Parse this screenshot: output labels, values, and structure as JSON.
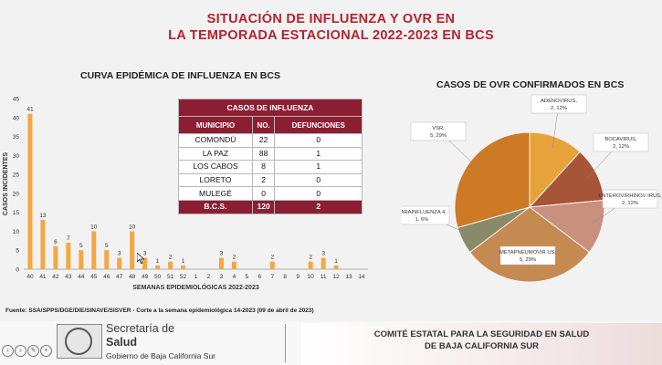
{
  "title_line1": "SITUACIÓN DE INFLUENZA Y OVR EN",
  "title_line2": "LA TEMPORADA ESTACIONAL 2022-2023 EN BCS",
  "chart_data": [
    {
      "type": "bar",
      "title": "CURVA EPIDÉMICA DE INFLUENZA EN BCS",
      "xlabel": "SEMANAS EPIDEMIOLÓGICAS 2022-2023",
      "ylabel": "CASOS INCIDENTES",
      "ylim": [
        0,
        45
      ],
      "yticks": [
        0,
        5,
        10,
        15,
        20,
        25,
        30,
        35,
        40,
        45
      ],
      "categories": [
        "40",
        "41",
        "42",
        "43",
        "44",
        "45",
        "46",
        "47",
        "48",
        "49",
        "50",
        "51",
        "52",
        "1",
        "2",
        "3",
        "4",
        "5",
        "6",
        "7",
        "8",
        "9",
        "10",
        "11",
        "12",
        "13",
        "14"
      ],
      "values": [
        41,
        13,
        6,
        7,
        5,
        10,
        5,
        3,
        10,
        3,
        1,
        2,
        1,
        0,
        0,
        3,
        2,
        0,
        0,
        2,
        0,
        0,
        2,
        3,
        1,
        0,
        0
      ],
      "data_labels": [
        "41",
        "13",
        "6",
        "7",
        "5",
        "10",
        "5",
        "3",
        "10",
        "3",
        "1",
        "2",
        "1",
        "",
        "",
        "3",
        "2",
        "",
        "",
        "2",
        "",
        "",
        "2",
        "3",
        "1",
        "",
        ""
      ],
      "color": "#f4a742",
      "grid": false
    },
    {
      "type": "pie",
      "title": "CASOS DE OVR CONFIRMADOS EN BCS",
      "slices": [
        {
          "label": "ADENOVIRUS, 2, 12%",
          "value": 2,
          "percent": 12,
          "color": "#e8a23a"
        },
        {
          "label": "BOCAVIRUS, 2, 12%",
          "value": 2,
          "percent": 12,
          "color": "#a85436"
        },
        {
          "label": "ENTEROV/RHINOV IRUS, 2, 12%",
          "value": 2,
          "percent": 12,
          "color": "#c9907e"
        },
        {
          "label": "METAPNEUMOVIR US, 5, 29%",
          "value": 5,
          "percent": 29,
          "color": "#c58a52"
        },
        {
          "label": "PARAINFLUENZA 4, 1, 6%",
          "value": 1,
          "percent": 6,
          "color": "#8a8a6a"
        },
        {
          "label": "VSR, 5, 29%",
          "value": 5,
          "percent": 29,
          "color": "#cc7a24"
        }
      ]
    }
  ],
  "table": {
    "title": "CASOS DE INFLUENZA",
    "headers": [
      "MUNICIPIO",
      "NO.",
      "DEFUNCIONES"
    ],
    "rows": [
      [
        "COMONDÚ",
        "22",
        "0"
      ],
      [
        "LA PAZ",
        "88",
        "1"
      ],
      [
        "LOS CABOS",
        "8",
        "1"
      ],
      [
        "LORETO",
        "2",
        "0"
      ],
      [
        "MULEGÉ",
        "0",
        "0"
      ]
    ],
    "total": [
      "B.C.S.",
      "120",
      "2"
    ]
  },
  "source": "Fuente: SSA/SPPS/DGE/DIE/SINAVE/SISVER  - Corte a la semana epidemiológica 14-2023 (09 de abril de 2023)",
  "footer": {
    "secretaria": "Secretaría de",
    "salud": "Salud",
    "gobierno": "Gobierno de Baja California Sur",
    "comite_line1": "COMITÉ ESTATAL PARA LA SEGURIDAD EN SALUD",
    "comite_line2": "DE BAJA CALIFORNIA SUR"
  }
}
